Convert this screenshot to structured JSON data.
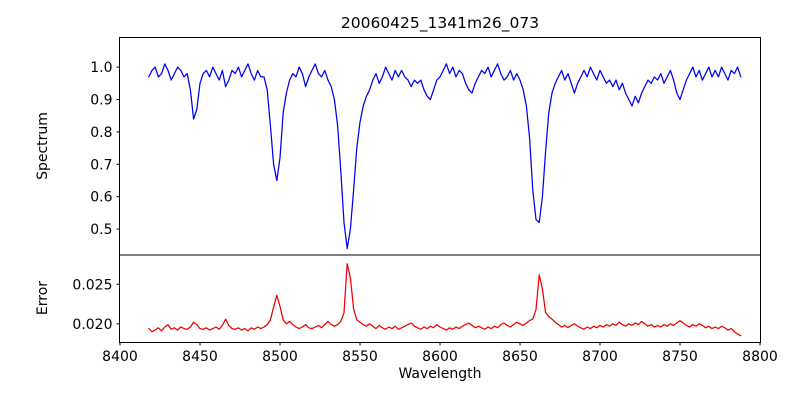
{
  "figure": {
    "background": "#ffffff",
    "text_color": "#000000"
  },
  "chart_data": {
    "type": "line",
    "title": "20060425_1341m26_073",
    "xlabel": "Wavelength",
    "xlim": [
      8400,
      8800
    ],
    "grid": false,
    "legend": "none",
    "xticks": [
      {
        "v": 8400,
        "label": "8400"
      },
      {
        "v": 8450,
        "label": "8450"
      },
      {
        "v": 8500,
        "label": "8500"
      },
      {
        "v": 8550,
        "label": "8550"
      },
      {
        "v": 8600,
        "label": "8600"
      },
      {
        "v": 8650,
        "label": "8650"
      },
      {
        "v": 8700,
        "label": "8700"
      },
      {
        "v": 8750,
        "label": "8750"
      },
      {
        "v": 8800,
        "label": "8800"
      }
    ],
    "x_start": 8418,
    "x_step": 2,
    "panels": [
      {
        "name": "spectrum",
        "ylabel": "Spectrum",
        "color": "#0000ee",
        "ylim": [
          0.42,
          1.09
        ],
        "yticks": [
          {
            "v": 1.0,
            "label": "1.0"
          },
          {
            "v": 0.9,
            "label": "0.9"
          },
          {
            "v": 0.8,
            "label": "0.8"
          },
          {
            "v": 0.7,
            "label": "0.7"
          },
          {
            "v": 0.6,
            "label": "0.6"
          },
          {
            "v": 0.5,
            "label": "0.5"
          }
        ],
        "absorption_line_minima": [
          {
            "x": 8446,
            "y": 0.84
          },
          {
            "x": 8498,
            "y": 0.65
          },
          {
            "x": 8542,
            "y": 0.44
          },
          {
            "x": 8662,
            "y": 0.52
          }
        ],
        "values": [
          0.97,
          0.99,
          1.0,
          0.97,
          0.98,
          1.01,
          0.99,
          0.96,
          0.98,
          1.0,
          0.99,
          0.97,
          0.98,
          0.93,
          0.84,
          0.87,
          0.95,
          0.98,
          0.99,
          0.97,
          1.0,
          0.98,
          0.96,
          0.99,
          0.94,
          0.96,
          0.99,
          0.98,
          1.0,
          0.97,
          0.99,
          1.01,
          0.98,
          0.96,
          0.99,
          0.97,
          0.97,
          0.93,
          0.82,
          0.7,
          0.65,
          0.72,
          0.86,
          0.92,
          0.96,
          0.98,
          0.97,
          1.0,
          0.98,
          0.94,
          0.97,
          0.99,
          1.01,
          0.98,
          0.97,
          0.99,
          0.96,
          0.94,
          0.9,
          0.82,
          0.68,
          0.52,
          0.44,
          0.5,
          0.62,
          0.75,
          0.83,
          0.88,
          0.91,
          0.93,
          0.96,
          0.98,
          0.95,
          0.97,
          1.0,
          0.98,
          0.96,
          0.99,
          0.97,
          0.99,
          0.97,
          0.96,
          0.94,
          0.96,
          0.95,
          0.96,
          0.93,
          0.91,
          0.9,
          0.93,
          0.96,
          0.97,
          0.99,
          1.01,
          0.98,
          1.0,
          0.97,
          0.99,
          0.98,
          0.95,
          0.93,
          0.92,
          0.95,
          0.97,
          0.99,
          0.98,
          1.0,
          0.97,
          0.99,
          1.01,
          0.98,
          0.96,
          0.97,
          0.99,
          0.96,
          0.98,
          0.96,
          0.93,
          0.88,
          0.78,
          0.62,
          0.53,
          0.52,
          0.6,
          0.74,
          0.86,
          0.92,
          0.95,
          0.97,
          0.99,
          0.96,
          0.98,
          0.95,
          0.92,
          0.95,
          0.97,
          0.99,
          0.97,
          1.0,
          0.98,
          0.96,
          0.99,
          0.97,
          0.95,
          0.96,
          0.94,
          0.96,
          0.93,
          0.95,
          0.92,
          0.9,
          0.88,
          0.91,
          0.89,
          0.92,
          0.94,
          0.96,
          0.95,
          0.97,
          0.96,
          0.98,
          0.95,
          0.97,
          0.99,
          0.96,
          0.92,
          0.9,
          0.93,
          0.96,
          0.98,
          1.0,
          0.97,
          0.99,
          0.96,
          0.98,
          1.0,
          0.97,
          0.99,
          0.97,
          1.0,
          0.98,
          0.96,
          0.99,
          0.98,
          1.0,
          0.97
        ]
      },
      {
        "name": "error",
        "ylabel": "Error",
        "color": "#ee0000",
        "ylim": [
          0.0177,
          0.0287
        ],
        "yticks": [
          {
            "v": 0.025,
            "label": "0.025"
          },
          {
            "v": 0.02,
            "label": "0.020"
          }
        ],
        "peak_maxima": [
          {
            "x": 8498,
            "y": 0.0236
          },
          {
            "x": 8542,
            "y": 0.0276
          },
          {
            "x": 8662,
            "y": 0.0262
          }
        ],
        "values": [
          0.0194,
          0.019,
          0.0192,
          0.0195,
          0.0191,
          0.0196,
          0.0199,
          0.0193,
          0.0195,
          0.0192,
          0.0196,
          0.0194,
          0.0193,
          0.0196,
          0.0202,
          0.0199,
          0.0194,
          0.0193,
          0.0195,
          0.0192,
          0.0194,
          0.0196,
          0.0193,
          0.0198,
          0.0206,
          0.0198,
          0.0194,
          0.0193,
          0.0195,
          0.0192,
          0.0194,
          0.0191,
          0.0195,
          0.0193,
          0.0196,
          0.0194,
          0.0196,
          0.0199,
          0.0205,
          0.0221,
          0.0236,
          0.0222,
          0.0205,
          0.02,
          0.0203,
          0.0199,
          0.0196,
          0.0194,
          0.0196,
          0.0199,
          0.0195,
          0.0194,
          0.0196,
          0.0198,
          0.0195,
          0.0199,
          0.0203,
          0.0199,
          0.0197,
          0.0199,
          0.0203,
          0.0214,
          0.0276,
          0.0258,
          0.0219,
          0.0205,
          0.0202,
          0.0199,
          0.0197,
          0.02,
          0.0197,
          0.0194,
          0.0198,
          0.0195,
          0.0193,
          0.0196,
          0.0194,
          0.0197,
          0.0193,
          0.0195,
          0.0197,
          0.0199,
          0.0201,
          0.0197,
          0.0195,
          0.0193,
          0.0196,
          0.0194,
          0.0197,
          0.0195,
          0.0199,
          0.0196,
          0.0194,
          0.0192,
          0.0195,
          0.0193,
          0.0196,
          0.0194,
          0.0197,
          0.0199,
          0.0201,
          0.0198,
          0.0195,
          0.0197,
          0.0195,
          0.0193,
          0.0196,
          0.0194,
          0.0197,
          0.0195,
          0.0199,
          0.0201,
          0.0198,
          0.0196,
          0.0199,
          0.0202,
          0.02,
          0.0198,
          0.0201,
          0.0204,
          0.0206,
          0.0218,
          0.0262,
          0.0244,
          0.0214,
          0.0209,
          0.0206,
          0.0202,
          0.0199,
          0.0196,
          0.0198,
          0.0195,
          0.0198,
          0.02,
          0.0197,
          0.0195,
          0.0193,
          0.0196,
          0.0194,
          0.0197,
          0.0195,
          0.0198,
          0.0196,
          0.0199,
          0.0197,
          0.02,
          0.0198,
          0.0202,
          0.0199,
          0.0197,
          0.02,
          0.0198,
          0.0201,
          0.0199,
          0.0203,
          0.02,
          0.0197,
          0.0199,
          0.0196,
          0.0198,
          0.0196,
          0.0199,
          0.0197,
          0.02,
          0.0198,
          0.0201,
          0.0204,
          0.0201,
          0.0198,
          0.0196,
          0.0199,
          0.0197,
          0.02,
          0.0198,
          0.0195,
          0.0197,
          0.0194,
          0.0196,
          0.0194,
          0.0197,
          0.0195,
          0.0192,
          0.0194,
          0.019,
          0.0187,
          0.0185
        ]
      }
    ]
  }
}
